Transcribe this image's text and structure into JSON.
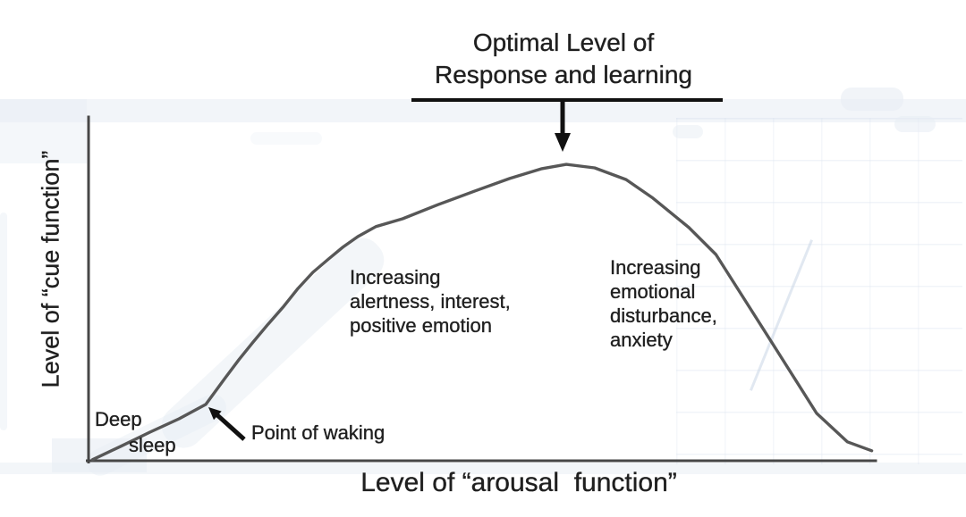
{
  "figure": {
    "title_line1": "Optimal Level of",
    "title_line2": "Response and learning",
    "y_axis_label": "Level of “cue function”",
    "x_axis_label": "Level of “arousal  function”",
    "annotations": {
      "deep_sleep_word1": "Deep",
      "deep_sleep_word2": "sleep",
      "point_of_waking": "Point of waking",
      "rising_label": "Increasing\nalertness, interest,\npositive emotion",
      "falling_label": "Increasing\nemotional\ndisturbance,\nanxiety"
    }
  },
  "colors": {
    "text": "#1f1f1f",
    "ink": "#111111",
    "axis": "#474747",
    "curve": "#575757",
    "scan_tint": "#e7edf4"
  },
  "chart_data": {
    "type": "line",
    "title": "Optimal Level of Response and learning",
    "xlabel": "Level of “arousal function”",
    "ylabel": "Level of “cue function”",
    "grid": false,
    "legend": false,
    "x_range": [
      0,
      1
    ],
    "y_range": [
      0,
      1
    ],
    "x_range_qualitative": [
      "low arousal (deep sleep)",
      "high arousal"
    ],
    "y_range_qualitative": [
      "low cue function",
      "high cue function"
    ],
    "series": [
      {
        "name": "cue-function vs arousal (inverted-U curve)",
        "points": [
          [
            0.005,
            0.003
          ],
          [
            0.041,
            0.042
          ],
          [
            0.078,
            0.083
          ],
          [
            0.115,
            0.122
          ],
          [
            0.149,
            0.164
          ],
          [
            0.172,
            0.236
          ],
          [
            0.191,
            0.294
          ],
          [
            0.209,
            0.345
          ],
          [
            0.228,
            0.397
          ],
          [
            0.248,
            0.449
          ],
          [
            0.266,
            0.501
          ],
          [
            0.285,
            0.548
          ],
          [
            0.305,
            0.587
          ],
          [
            0.323,
            0.621
          ],
          [
            0.342,
            0.652
          ],
          [
            0.365,
            0.681
          ],
          [
            0.399,
            0.704
          ],
          [
            0.444,
            0.745
          ],
          [
            0.49,
            0.784
          ],
          [
            0.535,
            0.821
          ],
          [
            0.575,
            0.849
          ],
          [
            0.607,
            0.862
          ],
          [
            0.643,
            0.852
          ],
          [
            0.683,
            0.818
          ],
          [
            0.717,
            0.764
          ],
          [
            0.763,
            0.678
          ],
          [
            0.797,
            0.6
          ],
          [
            0.839,
            0.449
          ],
          [
            0.88,
            0.301
          ],
          [
            0.925,
            0.138
          ],
          [
            0.964,
            0.055
          ],
          [
            0.995,
            0.029
          ]
        ]
      }
    ],
    "annotations": [
      {
        "text": "Deep sleep",
        "x": 0.06,
        "y": 0.1
      },
      {
        "text": "Point of waking",
        "x": 0.149,
        "y": 0.164,
        "note": "arrow points at kink where curve steepens"
      },
      {
        "text": "Increasing alertness, interest, positive emotion",
        "x": 0.37,
        "y": 0.5
      },
      {
        "text": "Increasing emotional disturbance, anxiety",
        "x": 0.7,
        "y": 0.5
      },
      {
        "text": "Optimal Level of Response and learning",
        "x": 0.607,
        "y": 0.862,
        "note": "arrow points down at curve peak"
      }
    ]
  }
}
